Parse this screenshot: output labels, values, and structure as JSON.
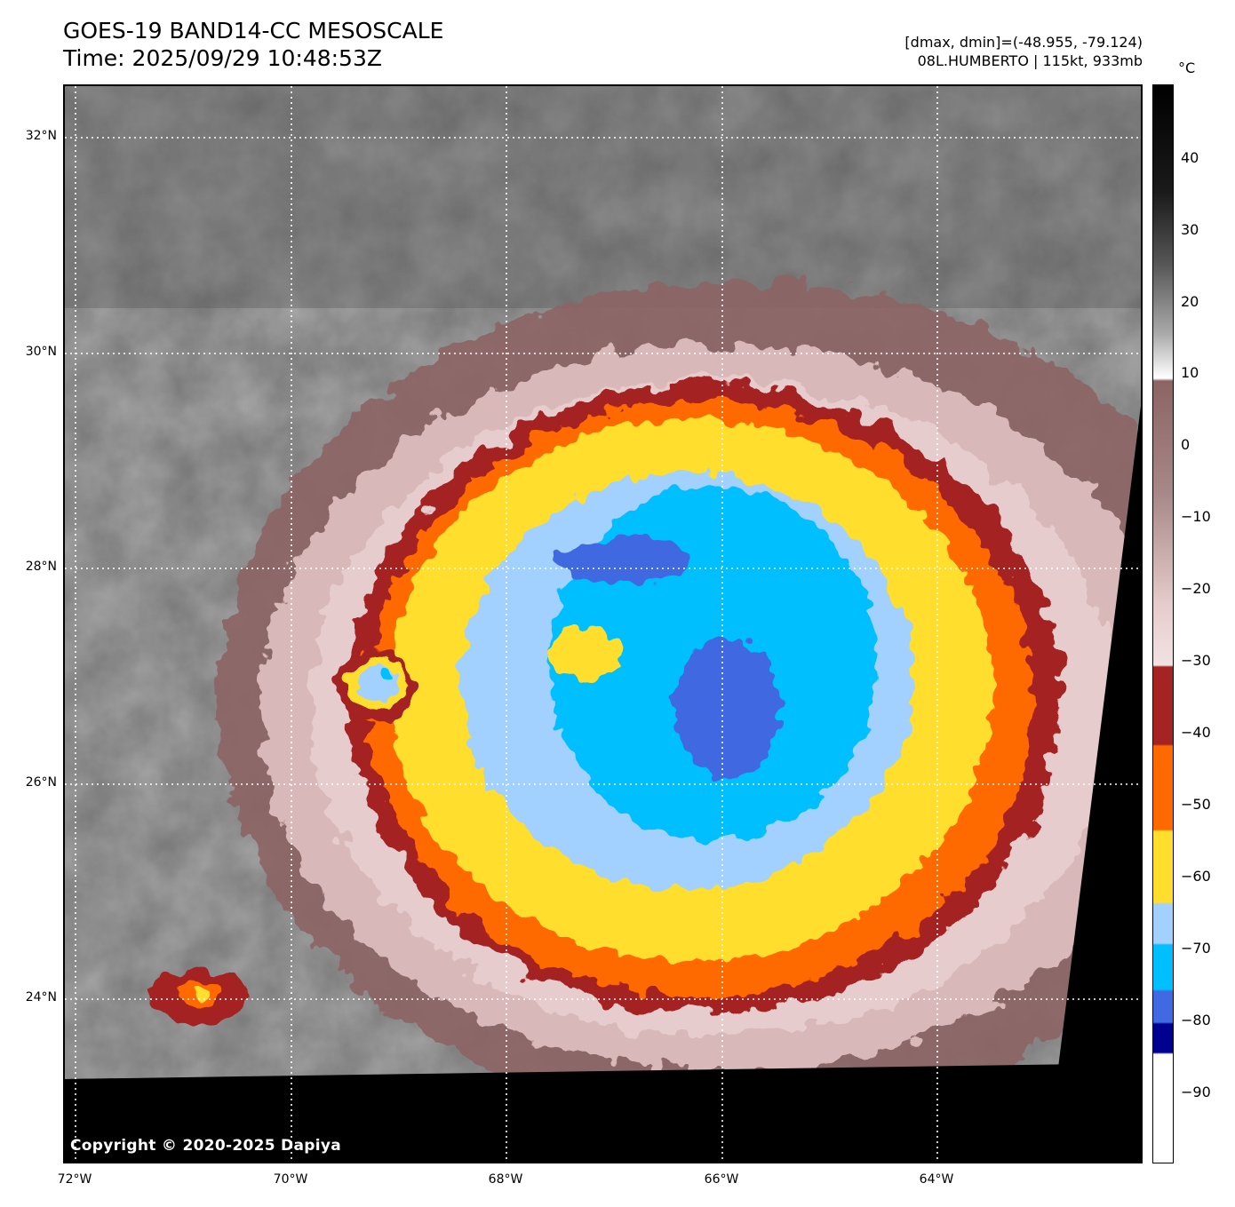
{
  "header": {
    "title_line1": "GOES-19 BAND14-CC MESOSCALE",
    "title_line2": "Time: 2025/09/29 10:48:53Z",
    "range_text": "[dmax, dmin]=(-48.955, -79.124)",
    "storm_text": "08L.HUMBERTO | 115kt, 933mb"
  },
  "map": {
    "copyright": "Copyright © 2020-2025 Dapiya",
    "lat_labels": [
      "32°N",
      "30°N",
      "28°N",
      "26°N",
      "24°N"
    ],
    "lon_labels": [
      "72°W",
      "70°W",
      "68°W",
      "66°W",
      "64°W"
    ]
  },
  "colorbar": {
    "unit": "°C",
    "tick_labels": [
      "40",
      "30",
      "20",
      "10",
      "0",
      "−10",
      "−20",
      "−30",
      "−40",
      "−50",
      "−60",
      "−70",
      "−80",
      "−90"
    ],
    "colors": {
      "warm_gray": "#6e6e6e",
      "brown": "#8c6464",
      "pink": "#e6cccc",
      "dark_red": "#a52323",
      "orange": "#ff6a00",
      "yellow": "#ffde2e",
      "light_blue": "#a2d0ff",
      "cyan": "#00bfff",
      "royal_blue": "#4169e1",
      "navy": "#000090",
      "white": "#ffffff",
      "black": "#000000"
    }
  }
}
